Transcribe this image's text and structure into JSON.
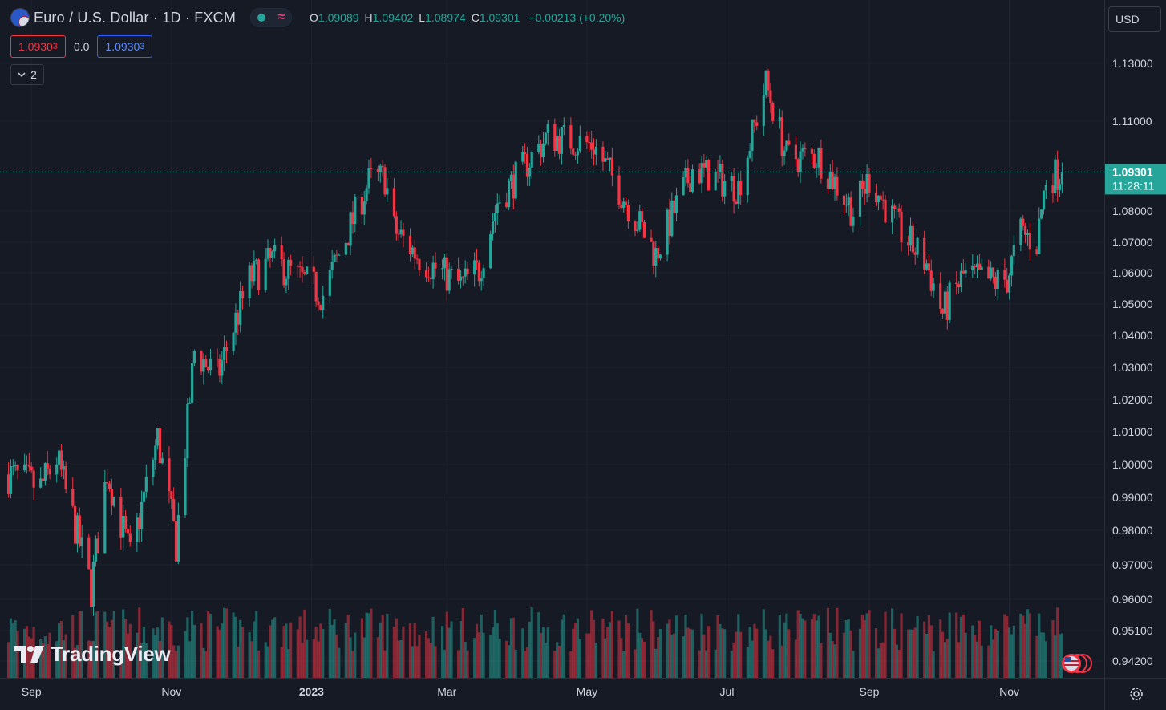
{
  "header": {
    "symbol_title": "Euro / U.S. Dollar · 1D · FXCM",
    "symbol_icon": "eur-usd-icon",
    "ohlc": {
      "o_label": "O",
      "o_value": "1.09089",
      "h_label": "H",
      "h_value": "1.09402",
      "l_label": "L",
      "l_value": "1.08974",
      "c_label": "C",
      "c_value": "1.09301",
      "change": "+0.00213 (+0.20%)"
    }
  },
  "quote": {
    "sell_main": "1.0930",
    "sell_small": "3",
    "spread": "0.0",
    "buy_main": "1.0930",
    "buy_small": "3"
  },
  "collapse": {
    "label": "2"
  },
  "currency": {
    "label": "USD"
  },
  "price_axis": {
    "ticks": [
      "1.13000",
      "1.11000",
      "1.08000",
      "1.07000",
      "1.06000",
      "1.05000",
      "1.04000",
      "1.03000",
      "1.02000",
      "1.01000",
      "1.00000",
      "0.99000",
      "0.98000",
      "0.97000",
      "0.96000",
      "0.95100",
      "0.94200"
    ],
    "last_price": "1.09301",
    "countdown": "11:28:11"
  },
  "time_axis": {
    "ticks": [
      "Sep",
      "Nov",
      "2023",
      "Mar",
      "May",
      "Jul",
      "Sep",
      "Nov"
    ]
  },
  "logo": {
    "name": "TradingView"
  },
  "colors": {
    "up": "#26a69a",
    "down": "#f23645",
    "background": "#161a25",
    "grid": "#1f2330"
  },
  "chart_data": {
    "type": "candlestick",
    "title": "Euro / U.S. Dollar · 1D · FXCM",
    "x_range": [
      "2022-08",
      "2023-11"
    ],
    "ylim": [
      0.935,
      1.135
    ],
    "grid": true,
    "legend": "top-left",
    "close_path": [
      {
        "x": "2022-08-22",
        "y": 0.997
      },
      {
        "x": "2022-09-05",
        "y": 0.993
      },
      {
        "x": "2022-09-12",
        "y": 1.002
      },
      {
        "x": "2022-09-27",
        "y": 0.963
      },
      {
        "x": "2022-10-04",
        "y": 0.998
      },
      {
        "x": "2022-10-14",
        "y": 0.972
      },
      {
        "x": "2022-10-26",
        "y": 1.008
      },
      {
        "x": "2022-11-03",
        "y": 0.976
      },
      {
        "x": "2022-11-11",
        "y": 1.035
      },
      {
        "x": "2022-11-21",
        "y": 1.027
      },
      {
        "x": "2022-12-05",
        "y": 1.058
      },
      {
        "x": "2022-12-15",
        "y": 1.064
      },
      {
        "x": "2023-01-06",
        "y": 1.053
      },
      {
        "x": "2023-01-26",
        "y": 1.09
      },
      {
        "x": "2023-02-02",
        "y": 1.091
      },
      {
        "x": "2023-02-06",
        "y": 1.074
      },
      {
        "x": "2023-02-17",
        "y": 1.065
      },
      {
        "x": "2023-03-07",
        "y": 1.056
      },
      {
        "x": "2023-03-15",
        "y": 1.061
      },
      {
        "x": "2023-03-23",
        "y": 1.083
      },
      {
        "x": "2023-04-14",
        "y": 1.105
      },
      {
        "x": "2023-05-04",
        "y": 1.102
      },
      {
        "x": "2023-05-31",
        "y": 1.066
      },
      {
        "x": "2023-06-16",
        "y": 1.094
      },
      {
        "x": "2023-07-06",
        "y": 1.088
      },
      {
        "x": "2023-07-18",
        "y": 1.123
      },
      {
        "x": "2023-07-27",
        "y": 1.098
      },
      {
        "x": "2023-08-10",
        "y": 1.098
      },
      {
        "x": "2023-08-25",
        "y": 1.08
      },
      {
        "x": "2023-09-01",
        "y": 1.091
      },
      {
        "x": "2023-09-13",
        "y": 1.075
      },
      {
        "x": "2023-09-26",
        "y": 1.063
      },
      {
        "x": "2023-10-03",
        "y": 1.047
      },
      {
        "x": "2023-10-12",
        "y": 1.059
      },
      {
        "x": "2023-10-26",
        "y": 1.057
      },
      {
        "x": "2023-10-31",
        "y": 1.058
      },
      {
        "x": "2023-11-06",
        "y": 1.073
      },
      {
        "x": "2023-11-13",
        "y": 1.07
      },
      {
        "x": "2023-11-17",
        "y": 1.091
      },
      {
        "x": "2023-11-24",
        "y": 1.093
      }
    ],
    "last": 1.09301
  }
}
